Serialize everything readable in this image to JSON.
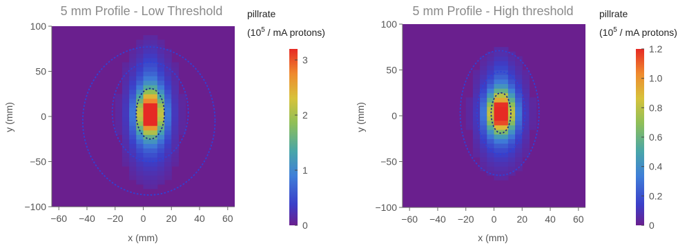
{
  "chart_data": [
    {
      "type": "heatmap",
      "title": "5 mm Profile - Low Threshold",
      "xlabel": "x (mm)",
      "ylabel": "y (mm)",
      "xlim": [
        -65,
        65
      ],
      "ylim": [
        -100,
        100
      ],
      "xticks": [
        "-60",
        "-40",
        "-20",
        "0",
        "20",
        "40",
        "60"
      ],
      "yticks": [
        "100",
        "50",
        "0",
        "-50",
        "-100"
      ],
      "colorbar": {
        "title_line1": "pillrate",
        "title_line2_prefix": "(10",
        "title_line2_sup": "5",
        "title_line2_suffix": " / mA protons)",
        "min": 0,
        "max": 3.2,
        "ticks": [
          "0",
          "1",
          "2",
          "3"
        ]
      },
      "peak_value": 3.2,
      "peak_center": [
        5,
        3
      ],
      "core_sigma": [
        6,
        16
      ],
      "tail_sigma": [
        11,
        40
      ],
      "upper_plume": {
        "x": 5,
        "y_from": 20,
        "y_to": 95,
        "value": 0.3
      },
      "contours": [
        {
          "cx": 4,
          "cy": -5,
          "rx": 47,
          "ry": 82
        },
        {
          "cx": 5,
          "cy": 5,
          "rx": 27,
          "ry": 55
        },
        {
          "cx": 5,
          "cy": 3,
          "rx": 10,
          "ry": 28
        }
      ]
    },
    {
      "type": "heatmap",
      "title": "5 mm Profile - High threshold",
      "xlabel": "x (mm)",
      "ylabel": "y (mm)",
      "xlim": [
        -65,
        65
      ],
      "ylim": [
        -100,
        100
      ],
      "xticks": [
        "-60",
        "-40",
        "-20",
        "0",
        "20",
        "40",
        "60"
      ],
      "yticks": [
        "100",
        "50",
        "0",
        "-50",
        "-100"
      ],
      "colorbar": {
        "title_line1": "pillrate",
        "title_line2_prefix": "(10",
        "title_line2_sup": "5",
        "title_line2_suffix": " / mA protons)",
        "min": 0,
        "max": 1.2,
        "ticks": [
          "0",
          "0.2",
          "0.4",
          "0.6",
          "0.8",
          "1.0",
          "1.2"
        ]
      },
      "peak_value": 1.2,
      "peak_center": [
        5,
        3
      ],
      "core_sigma": [
        6,
        14
      ],
      "tail_sigma": [
        11,
        34
      ],
      "upper_plume": {
        "x": 5,
        "y_from": 20,
        "y_to": 80,
        "value": 0.12
      },
      "contours": [
        {
          "cx": 4,
          "cy": 3,
          "rx": 28,
          "ry": 68
        },
        {
          "cx": 5,
          "cy": 3,
          "rx": 17,
          "ry": 45
        },
        {
          "cx": 5,
          "cy": 3,
          "rx": 7,
          "ry": 22
        }
      ]
    }
  ]
}
